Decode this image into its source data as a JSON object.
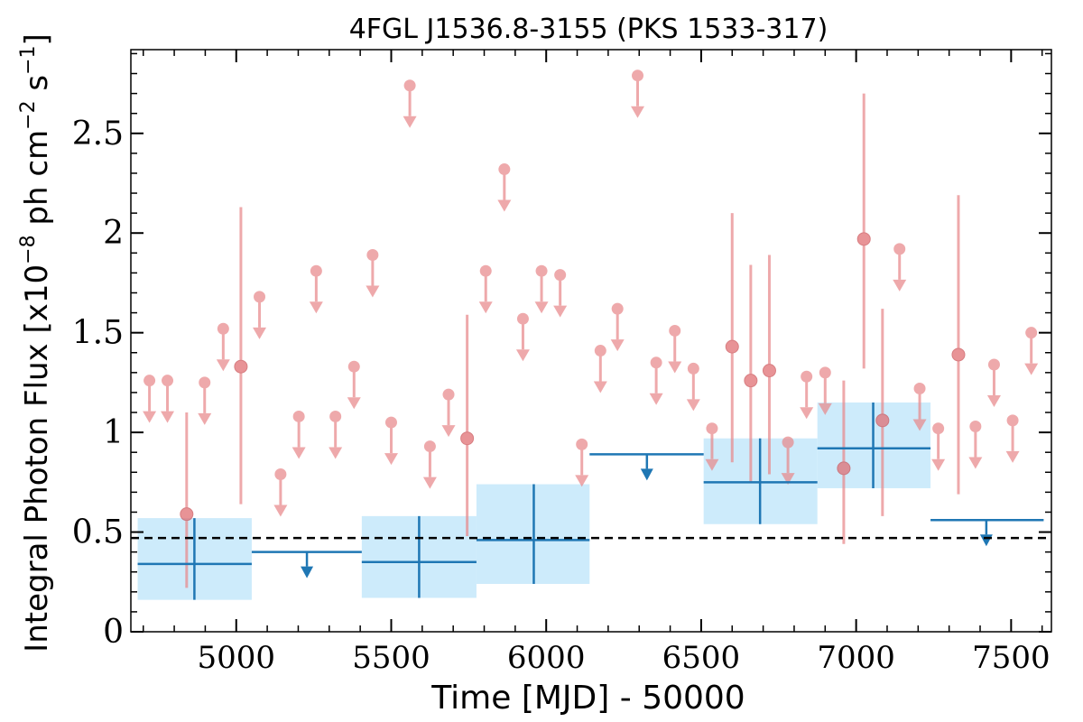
{
  "chart_data": {
    "type": "scatter",
    "title": "4FGL J1536.8-3155 (PKS 1533-317)",
    "xlabel": "Time [MJD] - 50000",
    "ylabel_main": "Integral Photon Flux [x10",
    "ylabel_exp1": "−8",
    "ylabel_mid": " ph cm",
    "ylabel_exp2": "−2",
    "ylabel_mid2": " s",
    "ylabel_exp3": "−1",
    "ylabel_end": "]",
    "xlim": [
      4660,
      7630
    ],
    "ylim": [
      0,
      2.92
    ],
    "x_ticks": [
      5000,
      5500,
      6000,
      6500,
      7000,
      7500
    ],
    "x_tick_labels": [
      "5000",
      "5500",
      "6000",
      "6500",
      "7000",
      "7500"
    ],
    "y_ticks": [
      0,
      0.5,
      1,
      1.5,
      2,
      2.5
    ],
    "y_tick_labels": [
      "0",
      "0.5",
      "1",
      "1.5",
      "2",
      "2.5"
    ],
    "mean_flux": 0.47,
    "colors": {
      "monthly": "#e8898c",
      "yearly": "#1f77b4",
      "band": "#cdebfb",
      "mean_line": "#000000"
    },
    "monthly_upper_limits": [
      [
        4720,
        1.26
      ],
      [
        4778,
        1.26
      ],
      [
        4898,
        1.25
      ],
      [
        4958,
        1.52
      ],
      [
        5075,
        1.68
      ],
      [
        5143,
        0.79
      ],
      [
        5202,
        1.08
      ],
      [
        5258,
        1.81
      ],
      [
        5320,
        1.08
      ],
      [
        5380,
        1.33
      ],
      [
        5440,
        1.89
      ],
      [
        5500,
        1.05
      ],
      [
        5560,
        2.74
      ],
      [
        5625,
        0.93
      ],
      [
        5685,
        1.19
      ],
      [
        5805,
        1.81
      ],
      [
        5865,
        2.32
      ],
      [
        5925,
        1.57
      ],
      [
        5985,
        1.81
      ],
      [
        6045,
        1.79
      ],
      [
        6115,
        0.94
      ],
      [
        6175,
        1.41
      ],
      [
        6230,
        1.62
      ],
      [
        6295,
        2.79
      ],
      [
        6355,
        1.35
      ],
      [
        6415,
        1.51
      ],
      [
        6475,
        1.32
      ],
      [
        6535,
        1.02
      ],
      [
        6780,
        0.95
      ],
      [
        6840,
        1.28
      ],
      [
        6900,
        1.3
      ],
      [
        7140,
        1.92
      ],
      [
        7205,
        1.22
      ],
      [
        7265,
        1.02
      ],
      [
        7385,
        1.03
      ],
      [
        7445,
        1.34
      ],
      [
        7505,
        1.06
      ],
      [
        7565,
        1.5
      ]
    ],
    "monthly_detections": [
      [
        4840,
        0.59,
        0.22,
        1.1
      ],
      [
        5015,
        1.33,
        0.64,
        2.13
      ],
      [
        5745,
        0.97,
        0.48,
        1.59
      ],
      [
        6600,
        1.43,
        0.85,
        2.1
      ],
      [
        6660,
        1.26,
        0.75,
        1.84
      ],
      [
        6720,
        1.31,
        0.79,
        1.89
      ],
      [
        6960,
        0.82,
        0.44,
        1.26
      ],
      [
        7025,
        1.97,
        1.32,
        2.7
      ],
      [
        7085,
        1.06,
        0.58,
        1.62
      ],
      [
        7330,
        1.39,
        0.69,
        2.19
      ]
    ],
    "yearly_detections": [
      [
        4865,
        4682,
        5050,
        0.34,
        0.16,
        0.57
      ],
      [
        5590,
        5405,
        5775,
        0.35,
        0.17,
        0.58
      ],
      [
        5960,
        5775,
        6140,
        0.46,
        0.24,
        0.74
      ],
      [
        6690,
        6508,
        6875,
        0.75,
        0.54,
        0.97
      ],
      [
        7055,
        6875,
        7240,
        0.92,
        0.72,
        1.15
      ]
    ],
    "yearly_upper_limits": [
      [
        5228,
        5050,
        5405,
        0.4
      ],
      [
        6325,
        6140,
        6508,
        0.89
      ],
      [
        7420,
        7240,
        7605,
        0.56
      ]
    ]
  }
}
